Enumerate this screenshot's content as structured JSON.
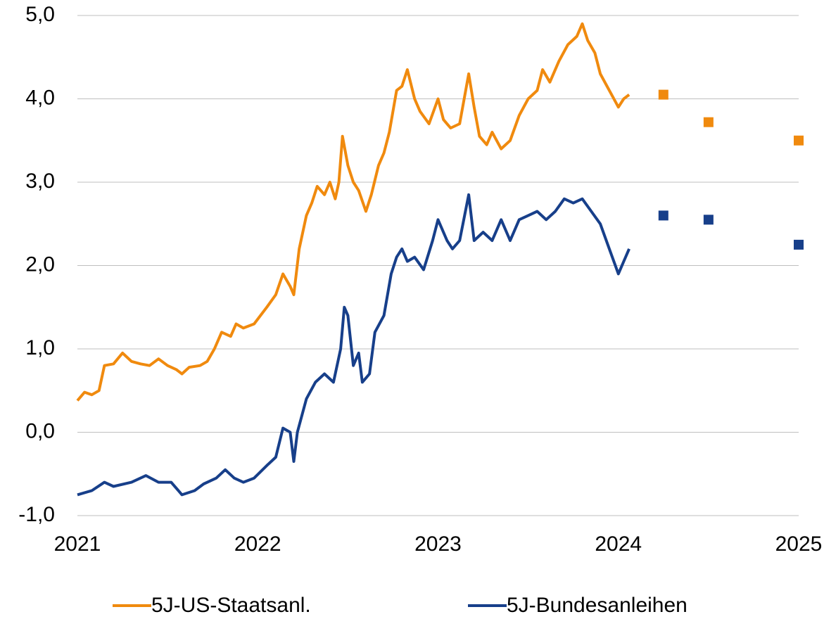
{
  "chart_data": {
    "type": "line",
    "xlim": [
      2021,
      2025
    ],
    "xticks": [
      2021,
      2022,
      2023,
      2024,
      2025
    ],
    "ylim": [
      -1,
      5
    ],
    "yticks": [
      {
        "value": -1,
        "label": "-1,0"
      },
      {
        "value": 0,
        "label": "0,0"
      },
      {
        "value": 1,
        "label": "1,0"
      },
      {
        "value": 2,
        "label": "2,0"
      },
      {
        "value": 3,
        "label": "3,0"
      },
      {
        "value": 4,
        "label": "4,0"
      },
      {
        "value": 5,
        "label": "5,0"
      }
    ],
    "grid": true,
    "legend": "bottom",
    "series": [
      {
        "name": "5J-US-Staatsanl.",
        "color": "#f08a0e",
        "x": [
          2021.0,
          2021.04,
          2021.08,
          2021.12,
          2021.15,
          2021.2,
          2021.25,
          2021.3,
          2021.35,
          2021.4,
          2021.45,
          2021.5,
          2021.55,
          2021.58,
          2021.62,
          2021.68,
          2021.72,
          2021.76,
          2021.8,
          2021.85,
          2021.88,
          2021.92,
          2021.98,
          2022.05,
          2022.1,
          2022.14,
          2022.18,
          2022.2,
          2022.23,
          2022.27,
          2022.3,
          2022.33,
          2022.37,
          2022.4,
          2022.43,
          2022.45,
          2022.47,
          2022.5,
          2022.53,
          2022.56,
          2022.6,
          2022.63,
          2022.67,
          2022.7,
          2022.73,
          2022.77,
          2022.8,
          2022.83,
          2022.87,
          2022.9,
          2022.95,
          2023.0,
          2023.03,
          2023.07,
          2023.12,
          2023.17,
          2023.2,
          2023.23,
          2023.27,
          2023.3,
          2023.35,
          2023.4,
          2023.45,
          2023.5,
          2023.55,
          2023.58,
          2023.62,
          2023.67,
          2023.72,
          2023.77,
          2023.8,
          2023.83,
          2023.87,
          2023.9,
          2023.95,
          2024.0,
          2024.03,
          2024.06
        ],
        "values": [
          0.38,
          0.48,
          0.45,
          0.5,
          0.8,
          0.82,
          0.95,
          0.85,
          0.82,
          0.8,
          0.88,
          0.8,
          0.75,
          0.7,
          0.78,
          0.8,
          0.85,
          1.0,
          1.2,
          1.15,
          1.3,
          1.25,
          1.3,
          1.5,
          1.65,
          1.9,
          1.75,
          1.65,
          2.2,
          2.6,
          2.75,
          2.95,
          2.85,
          3.0,
          2.8,
          3.0,
          3.55,
          3.2,
          3.0,
          2.9,
          2.65,
          2.85,
          3.2,
          3.35,
          3.6,
          4.1,
          4.15,
          4.35,
          4.0,
          3.85,
          3.7,
          4.0,
          3.75,
          3.65,
          3.7,
          4.3,
          3.9,
          3.55,
          3.45,
          3.6,
          3.4,
          3.5,
          3.8,
          4.0,
          4.1,
          4.35,
          4.2,
          4.45,
          4.65,
          4.75,
          4.9,
          4.7,
          4.55,
          4.3,
          4.1,
          3.9,
          4.0,
          4.05
        ],
        "forecast": {
          "x": [
            2024.25,
            2024.5,
            2025.0
          ],
          "values": [
            4.05,
            3.72,
            3.5
          ]
        }
      },
      {
        "name": "5J-Bundesanleihen",
        "color": "#173f8a",
        "x": [
          2021.0,
          2021.08,
          2021.15,
          2021.2,
          2021.3,
          2021.38,
          2021.45,
          2021.52,
          2021.58,
          2021.65,
          2021.7,
          2021.77,
          2021.82,
          2021.87,
          2021.92,
          2021.98,
          2022.05,
          2022.1,
          2022.14,
          2022.18,
          2022.2,
          2022.22,
          2022.27,
          2022.32,
          2022.37,
          2022.42,
          2022.46,
          2022.48,
          2022.5,
          2022.53,
          2022.56,
          2022.58,
          2022.62,
          2022.65,
          2022.7,
          2022.74,
          2022.77,
          2022.8,
          2022.83,
          2022.87,
          2022.92,
          2022.97,
          2023.0,
          2023.05,
          2023.08,
          2023.12,
          2023.17,
          2023.2,
          2023.25,
          2023.3,
          2023.35,
          2023.4,
          2023.45,
          2023.5,
          2023.55,
          2023.6,
          2023.65,
          2023.7,
          2023.75,
          2023.8,
          2023.85,
          2023.9,
          2023.95,
          2024.0,
          2024.03,
          2024.06
        ],
        "values": [
          -0.75,
          -0.7,
          -0.6,
          -0.65,
          -0.6,
          -0.52,
          -0.6,
          -0.6,
          -0.75,
          -0.7,
          -0.62,
          -0.55,
          -0.45,
          -0.55,
          -0.6,
          -0.55,
          -0.4,
          -0.3,
          0.05,
          0.0,
          -0.35,
          0.0,
          0.4,
          0.6,
          0.7,
          0.6,
          1.0,
          1.5,
          1.4,
          0.8,
          0.95,
          0.6,
          0.7,
          1.2,
          1.4,
          1.9,
          2.1,
          2.2,
          2.05,
          2.1,
          1.95,
          2.3,
          2.55,
          2.3,
          2.2,
          2.3,
          2.85,
          2.3,
          2.4,
          2.3,
          2.55,
          2.3,
          2.55,
          2.6,
          2.65,
          2.55,
          2.65,
          2.8,
          2.75,
          2.8,
          2.65,
          2.5,
          2.2,
          1.9,
          2.05,
          2.2
        ],
        "forecast": {
          "x": [
            2024.25,
            2024.5,
            2025.0
          ],
          "values": [
            2.6,
            2.55,
            2.25
          ]
        }
      }
    ]
  }
}
